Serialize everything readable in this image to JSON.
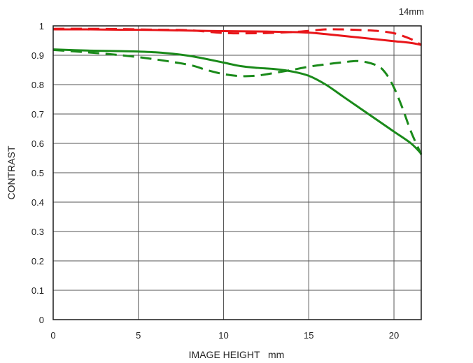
{
  "chart_data": {
    "type": "line",
    "title": "",
    "subtitle": "14mm",
    "xlabel": "IMAGE HEIGHT   mm",
    "ylabel": "CONTRAST",
    "xlim": [
      0,
      21.6
    ],
    "ylim": [
      0,
      1
    ],
    "x_ticks": [
      0,
      5,
      10,
      15,
      20
    ],
    "x_tick_labels": [
      "0",
      "5",
      "10",
      "15",
      "20"
    ],
    "y_ticks": [
      0,
      0.1,
      0.2,
      0.3,
      0.4,
      0.5,
      0.6,
      0.7,
      0.8,
      0.9,
      1
    ],
    "y_tick_labels": [
      "0",
      "0.1",
      "0.2",
      "0.3",
      "0.4",
      "0.5",
      "0.6",
      "0.7",
      "0.8",
      "0.9",
      "1"
    ],
    "grid": true,
    "legend": "none",
    "series": [
      {
        "color": "#e8161a",
        "dash": "solid",
        "x": [
          0,
          2,
          4,
          6,
          8,
          10,
          12,
          14,
          15,
          16,
          17,
          18,
          19,
          20,
          21,
          21.6
        ],
        "y": [
          0.988,
          0.988,
          0.987,
          0.986,
          0.984,
          0.982,
          0.981,
          0.979,
          0.977,
          0.972,
          0.966,
          0.96,
          0.954,
          0.948,
          0.942,
          0.935
        ]
      },
      {
        "color": "#e8161a",
        "dash": "dashed",
        "x": [
          0,
          2,
          4,
          6,
          8,
          10,
          12,
          14,
          15,
          16,
          17,
          18,
          19,
          20,
          21,
          21.6
        ],
        "y": [
          0.99,
          0.99,
          0.989,
          0.987,
          0.985,
          0.976,
          0.975,
          0.979,
          0.983,
          0.988,
          0.988,
          0.986,
          0.983,
          0.975,
          0.955,
          0.935
        ]
      },
      {
        "color": "#1a8a1a",
        "dash": "solid",
        "x": [
          0,
          2,
          4,
          6,
          8,
          10,
          11,
          12,
          13,
          14,
          15,
          16,
          17,
          18,
          19,
          20,
          21,
          21.6
        ],
        "y": [
          0.92,
          0.916,
          0.914,
          0.91,
          0.898,
          0.875,
          0.863,
          0.857,
          0.853,
          0.845,
          0.83,
          0.8,
          0.76,
          0.72,
          0.68,
          0.64,
          0.6,
          0.565
        ]
      },
      {
        "color": "#1a8a1a",
        "dash": "dashed",
        "x": [
          0,
          2,
          4,
          6,
          8,
          9,
          10,
          11,
          12,
          13,
          14,
          15,
          16,
          17,
          18,
          19,
          19.5,
          20,
          20.5,
          21,
          21.6
        ],
        "y": [
          0.918,
          0.91,
          0.9,
          0.886,
          0.867,
          0.85,
          0.836,
          0.829,
          0.831,
          0.84,
          0.85,
          0.861,
          0.869,
          0.876,
          0.88,
          0.865,
          0.84,
          0.79,
          0.72,
          0.64,
          0.562
        ]
      }
    ]
  }
}
